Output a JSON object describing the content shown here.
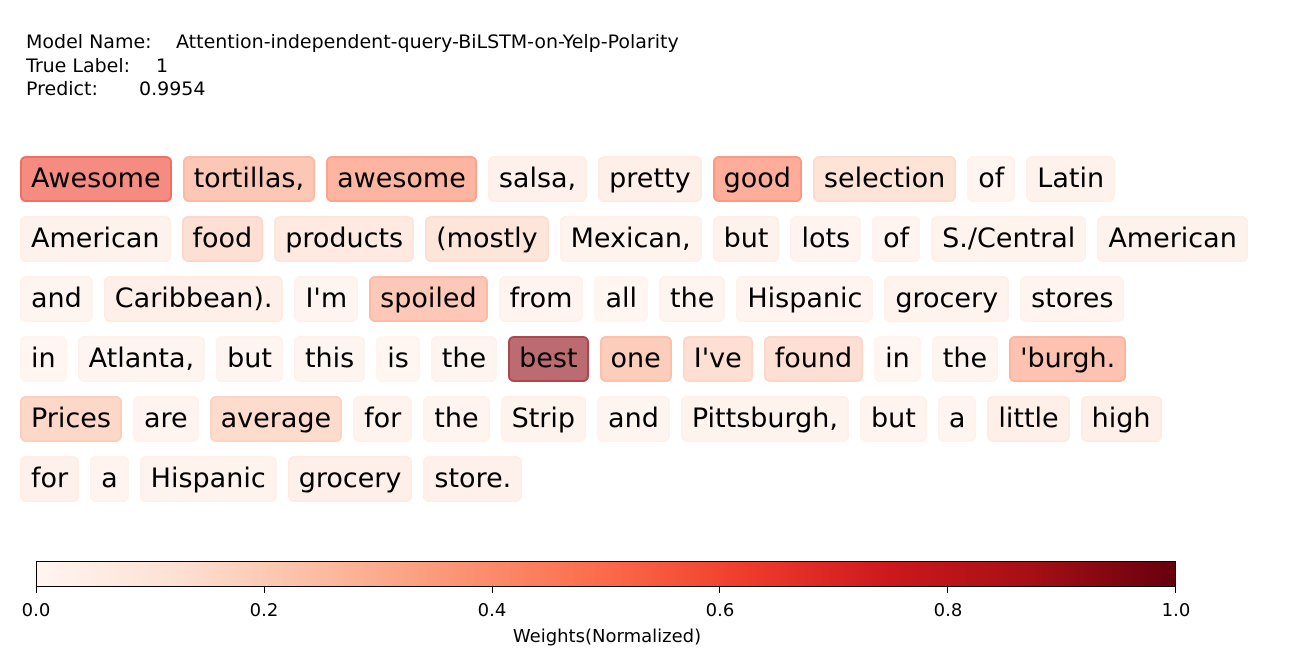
{
  "meta": {
    "model_key": "Model Name:",
    "model_value": "Attention-independent-query-BiLSTM-on-Yelp-Polarity",
    "label_key": "True Label:",
    "label_value": "1",
    "predict_key": "Predict:",
    "predict_value": "0.9954"
  },
  "chart_data": {
    "type": "heatmap",
    "description_free": true,
    "lines": [
      [
        [
          "Awesome",
          0.62
        ],
        [
          "tortillas,",
          0.33
        ],
        [
          "awesome",
          0.42
        ],
        [
          "salsa,",
          0.08
        ],
        [
          "pretty",
          0.1
        ],
        [
          "good",
          0.46
        ],
        [
          "selection",
          0.18
        ],
        [
          "of",
          0.04
        ],
        [
          "Latin",
          0.07
        ]
      ],
      [
        [
          "American",
          0.07
        ],
        [
          "food",
          0.2
        ],
        [
          "products",
          0.14
        ],
        [
          "(mostly",
          0.17
        ],
        [
          "Mexican,",
          0.06
        ],
        [
          "but",
          0.07
        ],
        [
          "lots",
          0.05
        ],
        [
          "of",
          0.04
        ],
        [
          "S./Central",
          0.06
        ],
        [
          "American",
          0.07
        ]
      ],
      [
        [
          "and",
          0.04
        ],
        [
          "Caribbean).",
          0.1
        ],
        [
          "I'm",
          0.04
        ],
        [
          "spoiled",
          0.32
        ],
        [
          "from",
          0.05
        ],
        [
          "all",
          0.03
        ],
        [
          "the",
          0.04
        ],
        [
          "Hispanic",
          0.05
        ],
        [
          "grocery",
          0.06
        ],
        [
          "stores",
          0.05
        ]
      ],
      [
        [
          "in",
          0.03
        ],
        [
          "Atlanta,",
          0.04
        ],
        [
          "but",
          0.04
        ],
        [
          "this",
          0.04
        ],
        [
          "is",
          0.03
        ],
        [
          "the",
          0.04
        ],
        [
          "best",
          0.92
        ],
        [
          "one",
          0.3
        ],
        [
          "I've",
          0.2
        ],
        [
          "found",
          0.2
        ],
        [
          "in",
          0.03
        ],
        [
          "the",
          0.04
        ],
        [
          "'burgh.",
          0.35
        ]
      ],
      [
        [
          "Prices",
          0.24
        ],
        [
          "are",
          0.05
        ],
        [
          "average",
          0.22
        ],
        [
          "for",
          0.06
        ],
        [
          "the",
          0.05
        ],
        [
          "Strip",
          0.06
        ],
        [
          "and",
          0.04
        ],
        [
          "Pittsburgh,",
          0.06
        ],
        [
          "but",
          0.05
        ],
        [
          "a",
          0.04
        ],
        [
          "little",
          0.1
        ],
        [
          "high",
          0.1
        ]
      ],
      [
        [
          "for",
          0.08
        ],
        [
          "a",
          0.05
        ],
        [
          "Hispanic",
          0.06
        ],
        [
          "grocery",
          0.1
        ],
        [
          "store.",
          0.08
        ]
      ]
    ],
    "colorbar": {
      "label": "Weights(Normalized)",
      "range": [
        0,
        1
      ],
      "ticks": [
        "0.0",
        "0.2",
        "0.4",
        "0.6",
        "0.8",
        "1.0"
      ],
      "colormap": [
        "#fff5f0",
        "#fee0d2",
        "#fcbba1",
        "#fc9272",
        "#fb6a4a",
        "#ef3b2c",
        "#cb181d",
        "#a50f15",
        "#67000d"
      ]
    }
  }
}
